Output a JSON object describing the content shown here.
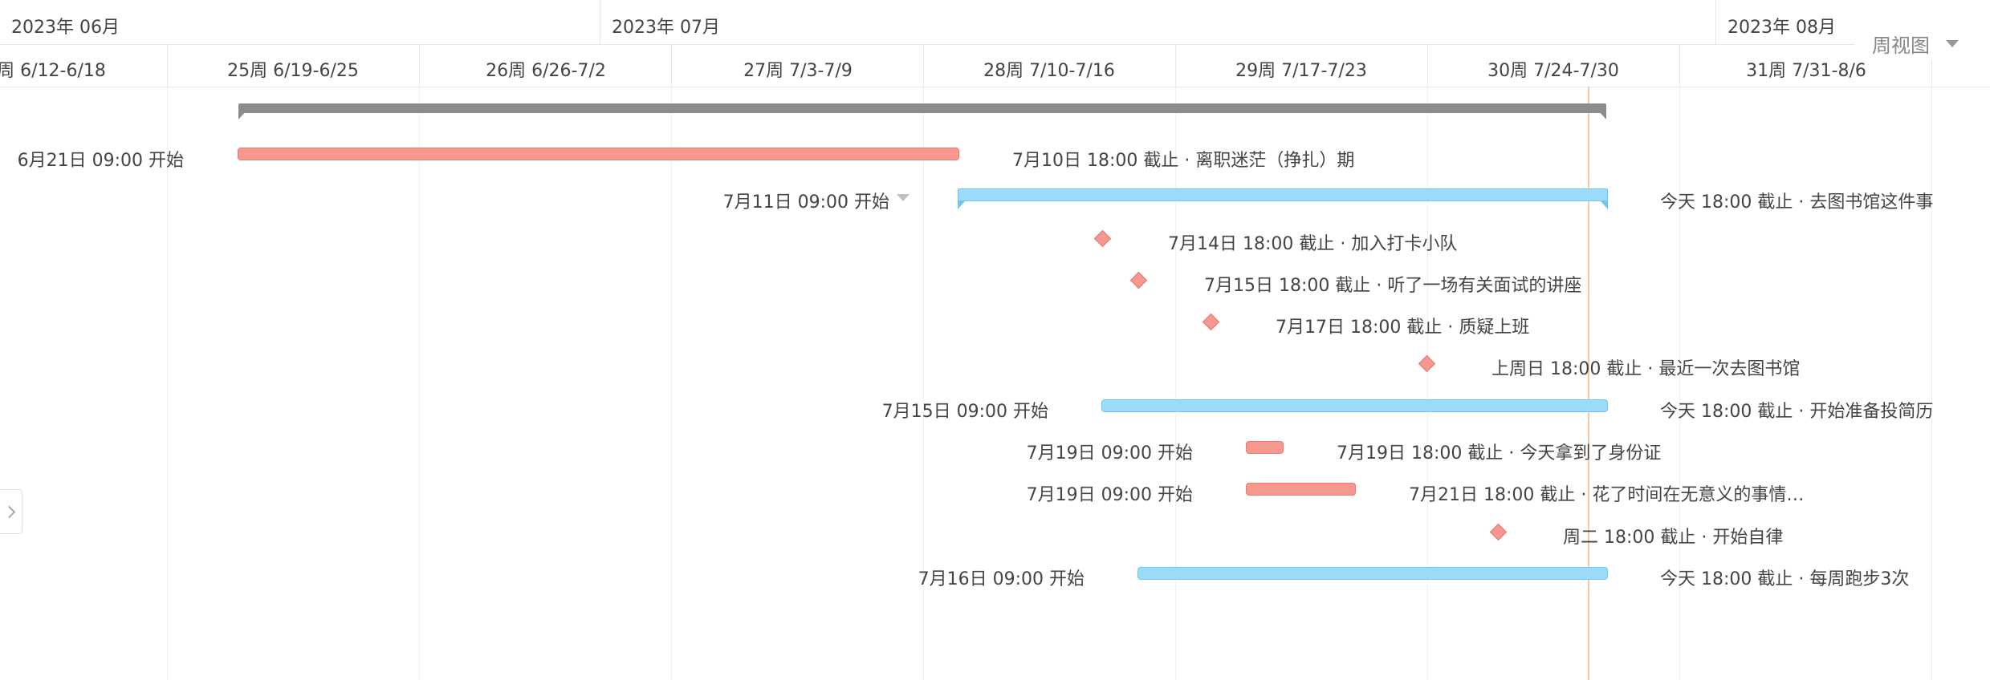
{
  "timeline": {
    "months": [
      "2023年 06月",
      "2023年 07月",
      "2023年 08月"
    ],
    "weeks": [
      "周 6/12-6/18",
      "25周 6/19-6/25",
      "26周 6/26-7/2",
      "27周 7/3-7/9",
      "28周 7/10-7/16",
      "29周 7/17-7/23",
      "30周 7/24-7/30",
      "31周 7/31-8/6"
    ]
  },
  "view_switch": {
    "label": "周视图"
  },
  "tasks": [
    {
      "start_label": "6月21日 09:00 开始",
      "end_label": "7月10日 18:00 截止 · 离职迷茫（挣扎）期"
    },
    {
      "start_label": "7月11日 09:00 开始",
      "end_label": "今天 18:00 截止 · 去图书馆这件事"
    },
    {
      "end_label": "7月14日 18:00 截止 · 加入打卡小队"
    },
    {
      "end_label": "7月15日 18:00 截止 · 听了一场有关面试的讲座"
    },
    {
      "end_label": "7月17日 18:00 截止 · 质疑上班"
    },
    {
      "end_label": "上周日 18:00 截止 · 最近一次去图书馆"
    },
    {
      "start_label": "7月15日 09:00 开始",
      "end_label": "今天 18:00 截止 · 开始准备投简历"
    },
    {
      "start_label": "7月19日 09:00 开始",
      "end_label": "7月19日 18:00 截止 · 今天拿到了身份证"
    },
    {
      "start_label": "7月19日 09:00 开始",
      "end_label": "7月21日 18:00 截止 · 花了时间在无意义的事情…"
    },
    {
      "end_label": "周二 18:00 截止 · 开始自律"
    },
    {
      "start_label": "7月16日 09:00 开始",
      "end_label": "今天 18:00 截止 · 每周跑步3次"
    }
  ],
  "colors": {
    "milestone": "#f5988f",
    "task_red": "#f5988f",
    "task_blue": "#9cdcfb",
    "summary": "#8c8c8c",
    "today_line": "#f7c9a4"
  },
  "icons": {
    "view_caret": "chevron-down-icon",
    "expand_handle": "chevron-right-icon",
    "start_caret": "caret-down-icon"
  }
}
